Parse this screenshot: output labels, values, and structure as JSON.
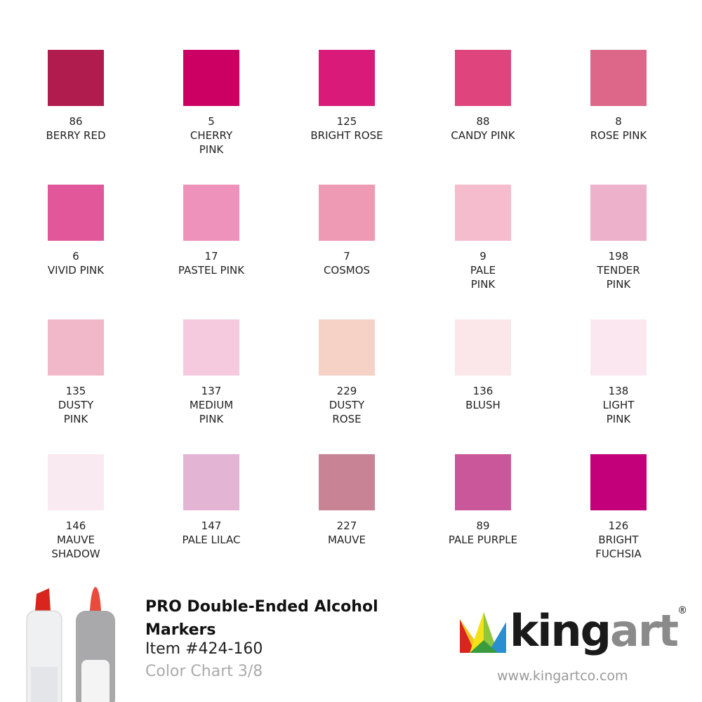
{
  "swatches": [
    {
      "number": "86",
      "name_lines": [
        "BERRY RED"
      ],
      "color": "#b01c4e"
    },
    {
      "number": "5",
      "name_lines": [
        "CHERRY",
        "PINK"
      ],
      "color": "#cc0062"
    },
    {
      "number": "125",
      "name_lines": [
        "BRIGHT ROSE"
      ],
      "color": "#d91a78"
    },
    {
      "number": "88",
      "name_lines": [
        "CANDY PINK"
      ],
      "color": "#e0447c"
    },
    {
      "number": "8",
      "name_lines": [
        "ROSE PINK"
      ],
      "color": "#dd6788"
    },
    {
      "number": "6",
      "name_lines": [
        "VIVID PINK"
      ],
      "color": "#e2569a"
    },
    {
      "number": "17",
      "name_lines": [
        "PASTEL PINK"
      ],
      "color": "#ee91bb"
    },
    {
      "number": "7",
      "name_lines": [
        "COSMOS"
      ],
      "color": "#ef9ab4"
    },
    {
      "number": "9",
      "name_lines": [
        "PALE",
        "PINK"
      ],
      "color": "#f4bccd"
    },
    {
      "number": "198",
      "name_lines": [
        "TENDER",
        "PINK"
      ],
      "color": "#edb1cc"
    },
    {
      "number": "135",
      "name_lines": [
        "DUSTY",
        "PINK"
      ],
      "color": "#f0b8c8"
    },
    {
      "number": "137",
      "name_lines": [
        "MEDIUM",
        "PINK"
      ],
      "color": "#f5c9de"
    },
    {
      "number": "229",
      "name_lines": [
        "DUSTY",
        "ROSE"
      ],
      "color": "#f5d1c6"
    },
    {
      "number": "136",
      "name_lines": [
        "BLUSH"
      ],
      "color": "#fbe6ea"
    },
    {
      "number": "138",
      "name_lines": [
        "LIGHT",
        "PINK"
      ],
      "color": "#fbe7ef"
    },
    {
      "number": "146",
      "name_lines": [
        "MAUVE",
        "SHADOW"
      ],
      "color": "#f8eaf0"
    },
    {
      "number": "147",
      "name_lines": [
        "PALE LILAC"
      ],
      "color": "#e3b4d3"
    },
    {
      "number": "227",
      "name_lines": [
        "MAUVE"
      ],
      "color": "#c88394"
    },
    {
      "number": "89",
      "name_lines": [
        "PALE PURPLE"
      ],
      "color": "#c9579a"
    },
    {
      "number": "126",
      "name_lines": [
        "BRIGHT",
        "FUCHSIA"
      ],
      "color": "#c3007a"
    }
  ],
  "product": {
    "title_lines": [
      "PRO Double-Ended Alcohol",
      "Markers"
    ],
    "item": "Item #424-160",
    "chart": "Color Chart 3/8"
  },
  "logo": {
    "part1": "king",
    "part2": "art",
    "mark": "®",
    "url": "www.kingartco.com"
  }
}
